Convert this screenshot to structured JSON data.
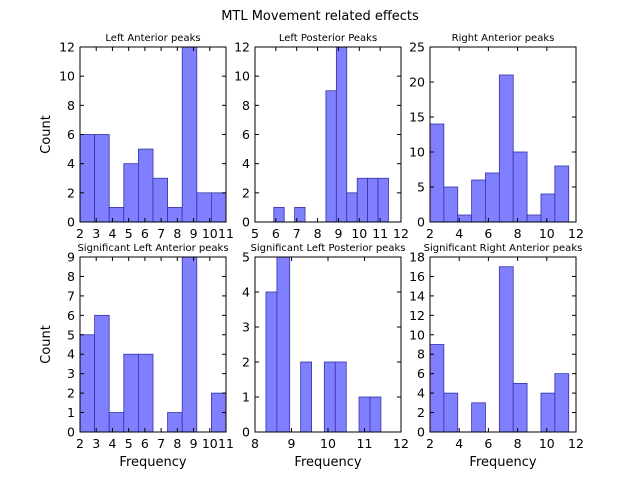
{
  "figure": {
    "title": "MTL Movement related effects"
  },
  "colors": {
    "bar_fill": "#8080ff",
    "bar_stroke": "#3333aa",
    "axes": "#000000",
    "background": "#ffffff"
  },
  "chart_data": [
    {
      "type": "bar",
      "title": "Left Anterior peaks",
      "xlabel": "",
      "ylabel": "Count",
      "xlim": [
        2,
        11
      ],
      "ylim": [
        0,
        12
      ],
      "xticks": [
        2,
        3,
        4,
        5,
        6,
        7,
        8,
        9,
        10,
        11
      ],
      "yticks": [
        0,
        2,
        4,
        6,
        8,
        10,
        12
      ],
      "bins": [
        [
          2.0,
          2.9,
          6
        ],
        [
          2.9,
          3.8,
          6
        ],
        [
          3.8,
          4.7,
          1
        ],
        [
          4.7,
          5.6,
          4
        ],
        [
          5.6,
          6.5,
          5
        ],
        [
          6.5,
          7.4,
          3
        ],
        [
          7.4,
          8.3,
          1
        ],
        [
          8.3,
          9.2,
          12
        ],
        [
          9.2,
          10.1,
          2
        ],
        [
          10.1,
          11.0,
          2
        ]
      ]
    },
    {
      "type": "bar",
      "title": "Left Posterior Peaks",
      "xlabel": "",
      "ylabel": "",
      "xlim": [
        5,
        12
      ],
      "ylim": [
        0,
        12
      ],
      "xticks": [
        5,
        6,
        7,
        8,
        9,
        10,
        11,
        12
      ],
      "yticks": [
        0,
        2,
        4,
        6,
        8,
        10,
        12
      ],
      "bins": [
        [
          5.9,
          6.4,
          1
        ],
        [
          6.4,
          6.9,
          0
        ],
        [
          6.9,
          7.4,
          1
        ],
        [
          7.4,
          7.9,
          0
        ],
        [
          7.9,
          8.4,
          0
        ],
        [
          8.4,
          8.9,
          9
        ],
        [
          8.9,
          9.4,
          12
        ],
        [
          9.4,
          9.9,
          2
        ],
        [
          9.9,
          10.4,
          3
        ],
        [
          10.4,
          10.9,
          3
        ],
        [
          10.9,
          11.4,
          3
        ]
      ]
    },
    {
      "type": "bar",
      "title": "Right Anterior peaks",
      "xlabel": "",
      "ylabel": "",
      "xlim": [
        2,
        12
      ],
      "ylim": [
        0,
        25
      ],
      "xticks": [
        2,
        4,
        6,
        8,
        10,
        12
      ],
      "yticks": [
        0,
        5,
        10,
        15,
        20,
        25
      ],
      "bins": [
        [
          2.0,
          2.95,
          14
        ],
        [
          2.95,
          3.9,
          5
        ],
        [
          3.9,
          4.85,
          1
        ],
        [
          4.85,
          5.8,
          6
        ],
        [
          5.8,
          6.75,
          7
        ],
        [
          6.75,
          7.7,
          21
        ],
        [
          7.7,
          8.65,
          10
        ],
        [
          8.65,
          9.6,
          1
        ],
        [
          9.6,
          10.55,
          4
        ],
        [
          10.55,
          11.5,
          8
        ]
      ]
    },
    {
      "type": "bar",
      "title": "Significant Left Anterior peaks",
      "xlabel": "Frequency",
      "ylabel": "Count",
      "xlim": [
        2,
        11
      ],
      "ylim": [
        0,
        9
      ],
      "xticks": [
        2,
        3,
        4,
        5,
        6,
        7,
        8,
        9,
        10,
        11
      ],
      "yticks": [
        0,
        1,
        2,
        3,
        4,
        5,
        6,
        7,
        8,
        9
      ],
      "bins": [
        [
          2.0,
          2.9,
          5
        ],
        [
          2.9,
          3.8,
          6
        ],
        [
          3.8,
          4.7,
          1
        ],
        [
          4.7,
          5.6,
          4
        ],
        [
          5.6,
          6.5,
          4
        ],
        [
          6.5,
          7.4,
          0
        ],
        [
          7.4,
          8.3,
          1
        ],
        [
          8.3,
          9.2,
          9
        ],
        [
          9.2,
          10.1,
          0
        ],
        [
          10.1,
          11.0,
          2
        ]
      ]
    },
    {
      "type": "bar",
      "title": "Significant Left Posterior peaks",
      "xlabel": "Frequency",
      "ylabel": "",
      "xlim": [
        8,
        12
      ],
      "ylim": [
        0,
        5
      ],
      "xticks": [
        8,
        9,
        10,
        11,
        12
      ],
      "yticks": [
        0,
        1,
        2,
        3,
        4,
        5
      ],
      "bins": [
        [
          8.3,
          8.6,
          4
        ],
        [
          8.6,
          8.95,
          5
        ],
        [
          8.95,
          9.25,
          0
        ],
        [
          9.25,
          9.55,
          2
        ],
        [
          9.55,
          9.9,
          0
        ],
        [
          9.9,
          10.2,
          2
        ],
        [
          10.2,
          10.5,
          2
        ],
        [
          10.5,
          10.85,
          0
        ],
        [
          10.85,
          11.15,
          1
        ],
        [
          11.15,
          11.45,
          1
        ]
      ]
    },
    {
      "type": "bar",
      "title": "Significant Right Anterior peaks",
      "xlabel": "Frequency",
      "ylabel": "",
      "xlim": [
        2,
        12
      ],
      "ylim": [
        0,
        18
      ],
      "xticks": [
        2,
        4,
        6,
        8,
        10,
        12
      ],
      "yticks": [
        0,
        2,
        4,
        6,
        8,
        10,
        12,
        14,
        16,
        18
      ],
      "bins": [
        [
          2.0,
          2.95,
          9
        ],
        [
          2.95,
          3.9,
          4
        ],
        [
          3.9,
          4.85,
          0
        ],
        [
          4.85,
          5.8,
          3
        ],
        [
          5.8,
          6.75,
          0
        ],
        [
          6.75,
          7.7,
          17
        ],
        [
          7.7,
          8.65,
          5
        ],
        [
          8.65,
          9.6,
          0
        ],
        [
          9.6,
          10.55,
          4
        ],
        [
          10.55,
          11.5,
          6
        ]
      ]
    }
  ]
}
